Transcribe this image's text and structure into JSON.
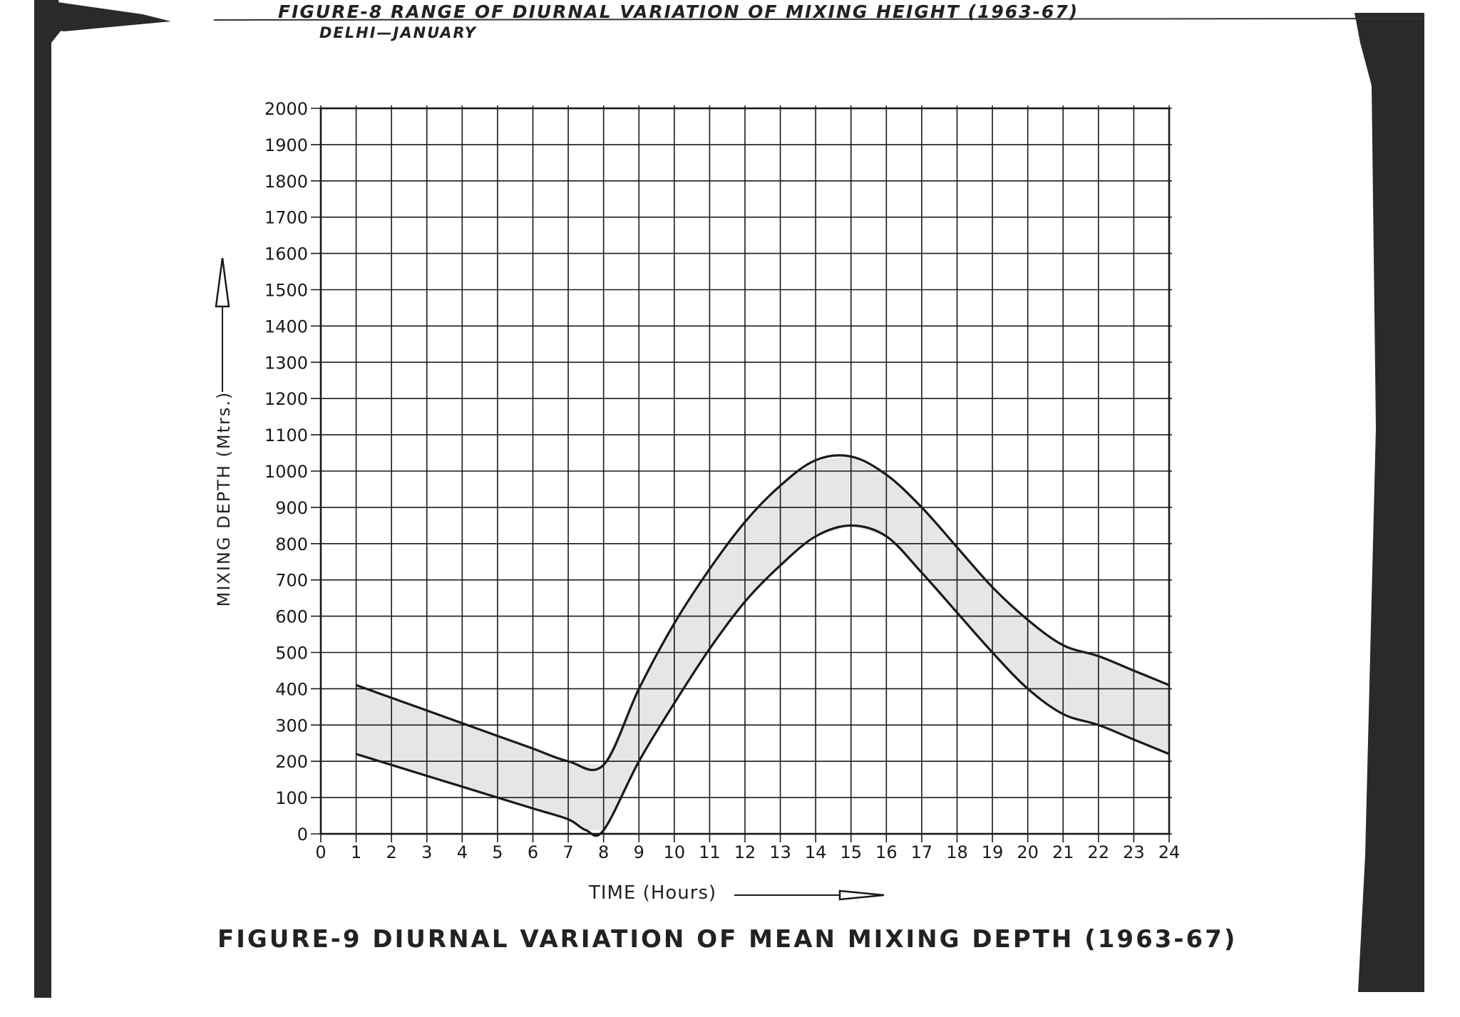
{
  "header": {
    "fig8_title": "FIGURE-8   RANGE OF DIURNAL VARIATION OF MIXING HEIGHT (1963-67)",
    "fig8_subtitle": "DELHI—JANUARY"
  },
  "colors": {
    "ink": "#1a1a1a",
    "band_fill": "#e6e6e6",
    "scan_shadow": "#2a2a2a"
  },
  "chart_data": {
    "type": "area",
    "title": "FIGURE-9   DIURNAL VARIATION OF MEAN MIXING DEPTH (1963-67)",
    "xlabel": "TIME  (Hours)",
    "ylabel": "MIXING DEPTH (Mtrs.)",
    "xlim": [
      0,
      24
    ],
    "ylim": [
      0,
      2000
    ],
    "x_ticks": [
      "0",
      "1",
      "2",
      "3",
      "4",
      "5",
      "6",
      "7",
      "8",
      "9",
      "10",
      "11",
      "12",
      "13",
      "14",
      "15",
      "16",
      "17",
      "18",
      "19",
      "20",
      "21",
      "22",
      "23",
      "24"
    ],
    "y_ticks": [
      "0",
      "100",
      "200",
      "300",
      "400",
      "500",
      "600",
      "700",
      "800",
      "900",
      "1000",
      "1100",
      "1200",
      "1300",
      "1400",
      "1500",
      "1600",
      "1700",
      "1800",
      "1900",
      "2000"
    ],
    "grid": true,
    "band": "range between upper and lower curves",
    "series": [
      {
        "x": [
          1,
          2,
          3,
          4,
          5,
          6,
          7,
          8,
          9,
          10,
          11,
          12,
          13,
          14,
          15,
          16,
          17,
          18,
          19,
          20,
          21,
          22,
          23,
          24
        ],
        "values": [
          410,
          375,
          340,
          305,
          270,
          235,
          200,
          190,
          400,
          580,
          730,
          860,
          960,
          1030,
          1040,
          990,
          900,
          790,
          680,
          590,
          520,
          490,
          450,
          410
        ]
      },
      {
        "x": [
          1,
          2,
          3,
          4,
          5,
          6,
          7,
          7.5,
          8,
          9,
          10,
          11,
          12,
          13,
          14,
          15,
          16,
          17,
          18,
          19,
          20,
          21,
          22,
          23,
          24
        ],
        "values": [
          220,
          190,
          160,
          130,
          100,
          70,
          40,
          10,
          10,
          200,
          360,
          510,
          640,
          740,
          820,
          850,
          820,
          720,
          610,
          500,
          400,
          330,
          300,
          260,
          220
        ]
      }
    ]
  }
}
